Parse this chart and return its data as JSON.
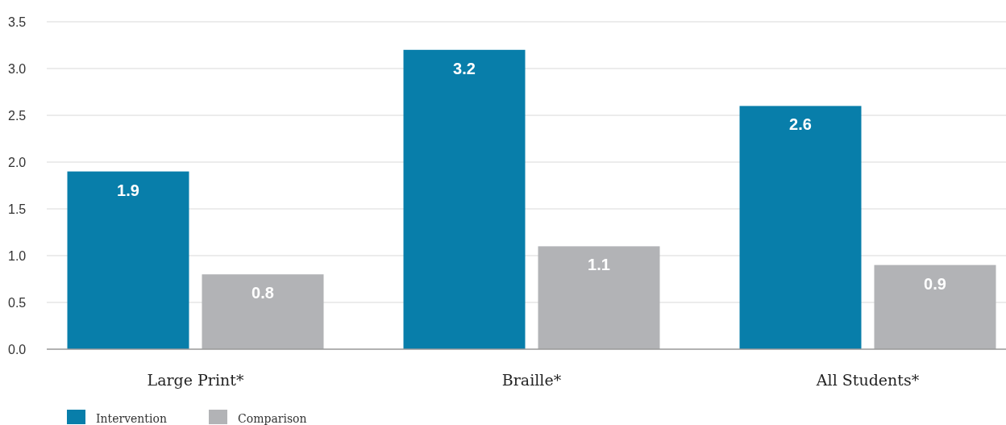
{
  "chart_data": {
    "type": "bar",
    "categories": [
      "Large Print*",
      "Braille*",
      "All Students*"
    ],
    "series": [
      {
        "name": "Intervention",
        "color": "#087eaa",
        "values": [
          1.9,
          3.2,
          2.6
        ]
      },
      {
        "name": "Comparison",
        "color": "#b2b3b6",
        "values": [
          0.8,
          1.1,
          0.9
        ]
      }
    ],
    "ylim": [
      0,
      3.5
    ],
    "yticks": [
      "0.0",
      "0.5",
      "1.0",
      "1.5",
      "2.0",
      "2.5",
      "3.0",
      "3.5"
    ],
    "grid": "y",
    "data_labels": true,
    "legend": "bottom left"
  }
}
